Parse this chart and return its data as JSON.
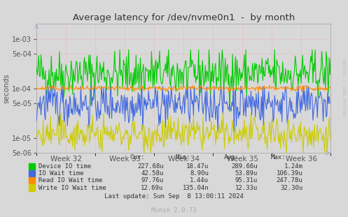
{
  "title": "Average latency for /dev/nvme0n1  -  by month",
  "ylabel": "seconds",
  "xlabel_ticks": [
    "Week 32",
    "Week 33",
    "Week 34",
    "Week 35",
    "Week 36"
  ],
  "right_label": "RRDTOOL / TOBI OETIKER",
  "footer": "Munin 2.0.73",
  "last_update": "Last update: Sun Sep  8 13:00:11 2024",
  "legend": [
    {
      "label": "Device IO time",
      "color": "#00cc00"
    },
    {
      "label": "IO Wait time",
      "color": "#4169e1"
    },
    {
      "label": "Read IO Wait time",
      "color": "#ff8c00"
    },
    {
      "label": "Write IO Wait time",
      "color": "#cccc00"
    }
  ],
  "stats_headers": [
    "Cur:",
    "Min:",
    "Avg:",
    "Max:"
  ],
  "stats": [
    {
      "cur": "227.68u",
      "min": "18.47u",
      "avg": "289.66u",
      "max": "1.24m"
    },
    {
      "cur": "42.58u",
      "min": "8.90u",
      "avg": "53.89u",
      "max": "106.39u"
    },
    {
      "cur": "97.76u",
      "min": "1.44u",
      "avg": "95.31u",
      "max": "247.78u"
    },
    {
      "cur": "12.69u",
      "min": "135.04n",
      "avg": "12.33u",
      "max": "32.30u"
    }
  ],
  "bg_color": "#d8d8d8",
  "plot_bg": "#d8d8d8",
  "grid_color": "#ff9999",
  "n_points": 400,
  "seed": 42
}
